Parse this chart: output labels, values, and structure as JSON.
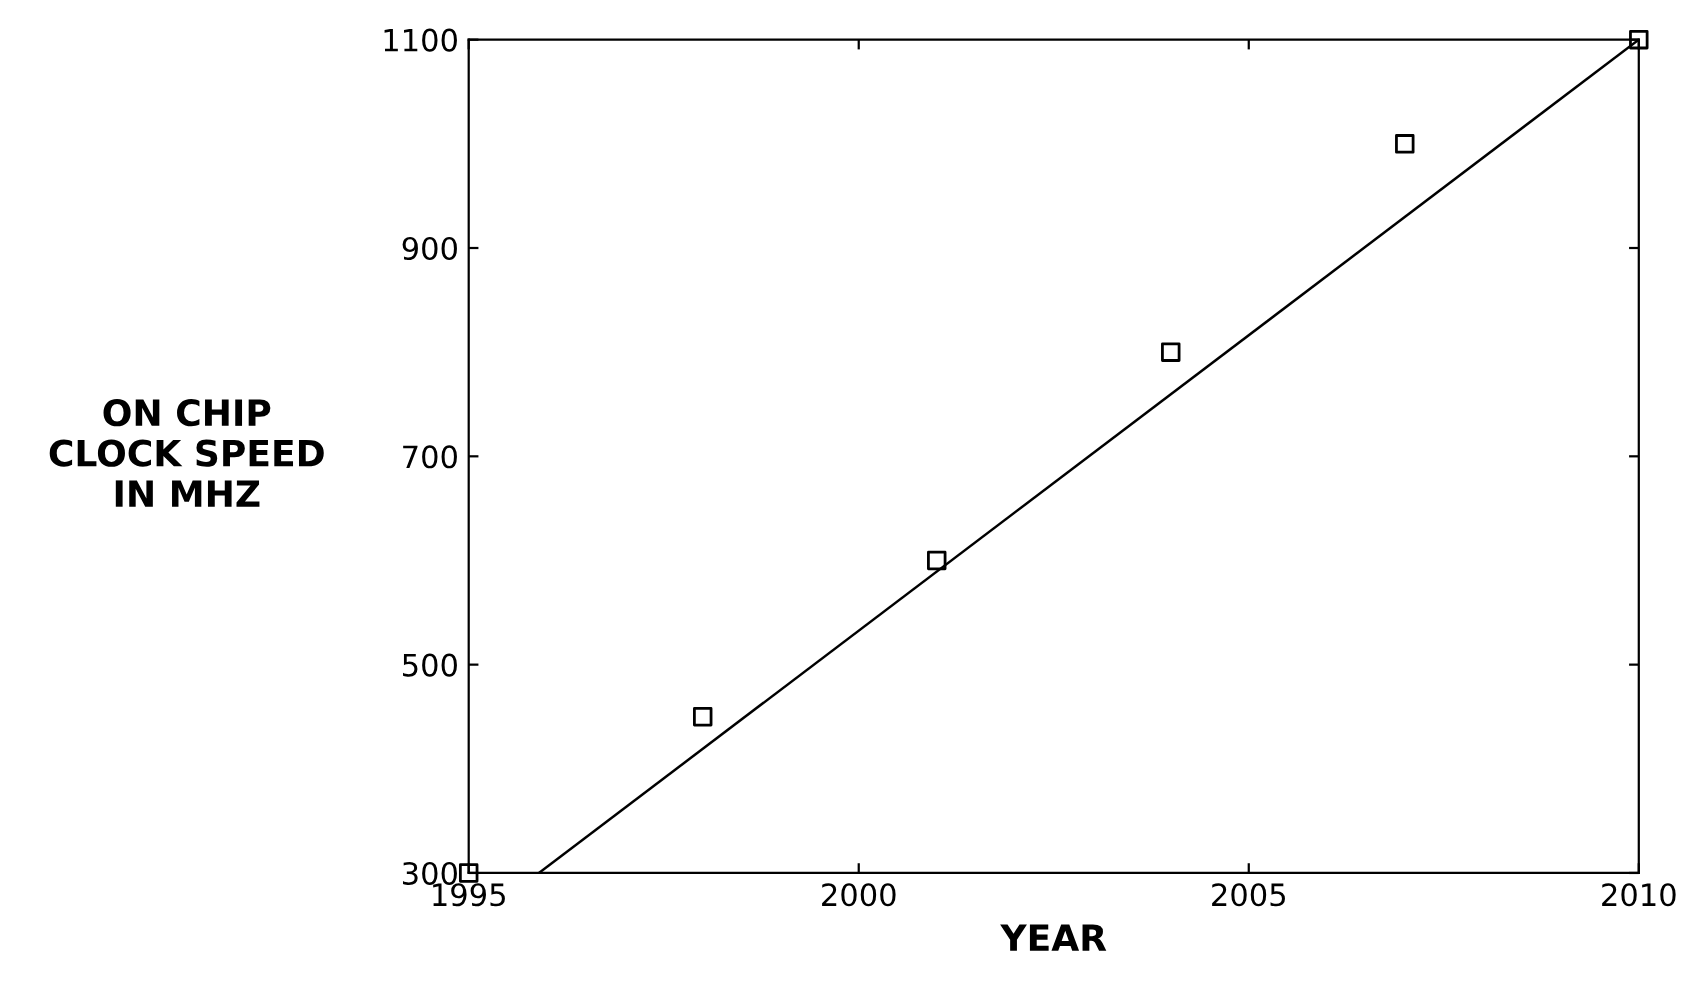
{
  "chart_data": {
    "type": "scatter",
    "xlabel": "YEAR",
    "ylabel": "ON CHIP\nCLOCK SPEED\nIN MHZ",
    "series": [
      {
        "x": [
          1995,
          1998,
          2001,
          2004,
          2007,
          2010
        ],
        "values": [
          300,
          450,
          600,
          800,
          1000,
          1100
        ],
        "color": "#000000",
        "marker": "square"
      },
      {
        "type": "line",
        "x": [
          1995.9,
          2010
        ],
        "values": [
          300,
          1100
        ],
        "color": "#000000",
        "marker": "none",
        "line_style": "solid"
      }
    ],
    "xlim": [
      1995,
      2010
    ],
    "ylim": [
      300,
      1100
    ],
    "xticks": [
      1995,
      2000,
      2005,
      2010
    ],
    "yticks": [
      300,
      500,
      700,
      900,
      1100
    ],
    "grid": false,
    "legend": false
  }
}
